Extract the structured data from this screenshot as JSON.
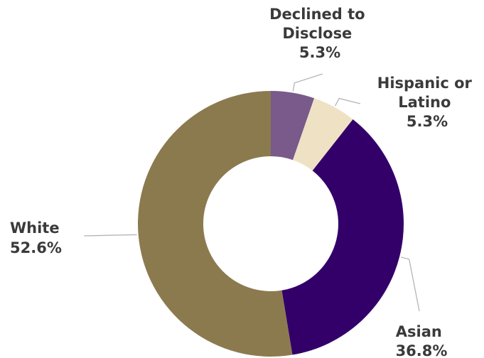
{
  "chart_data": {
    "type": "pie",
    "donut": true,
    "title": "",
    "start_angle_deg": 0,
    "direction": "clockwise",
    "slices": [
      {
        "label_lines": [
          "Declined to",
          "Disclose"
        ],
        "value": 5.3,
        "value_label": "5.3%",
        "color": "#7a5a8a"
      },
      {
        "label_lines": [
          "Hispanic or",
          "Latino"
        ],
        "value": 5.3,
        "value_label": "5.3%",
        "color": "#efe2c4"
      },
      {
        "label_lines": [
          "Asian"
        ],
        "value": 36.8,
        "value_label": "36.8%",
        "color": "#33006a"
      },
      {
        "label_lines": [
          "White"
        ],
        "value": 52.6,
        "value_label": "52.6%",
        "color": "#8c7a4f"
      }
    ],
    "legend": "none"
  }
}
